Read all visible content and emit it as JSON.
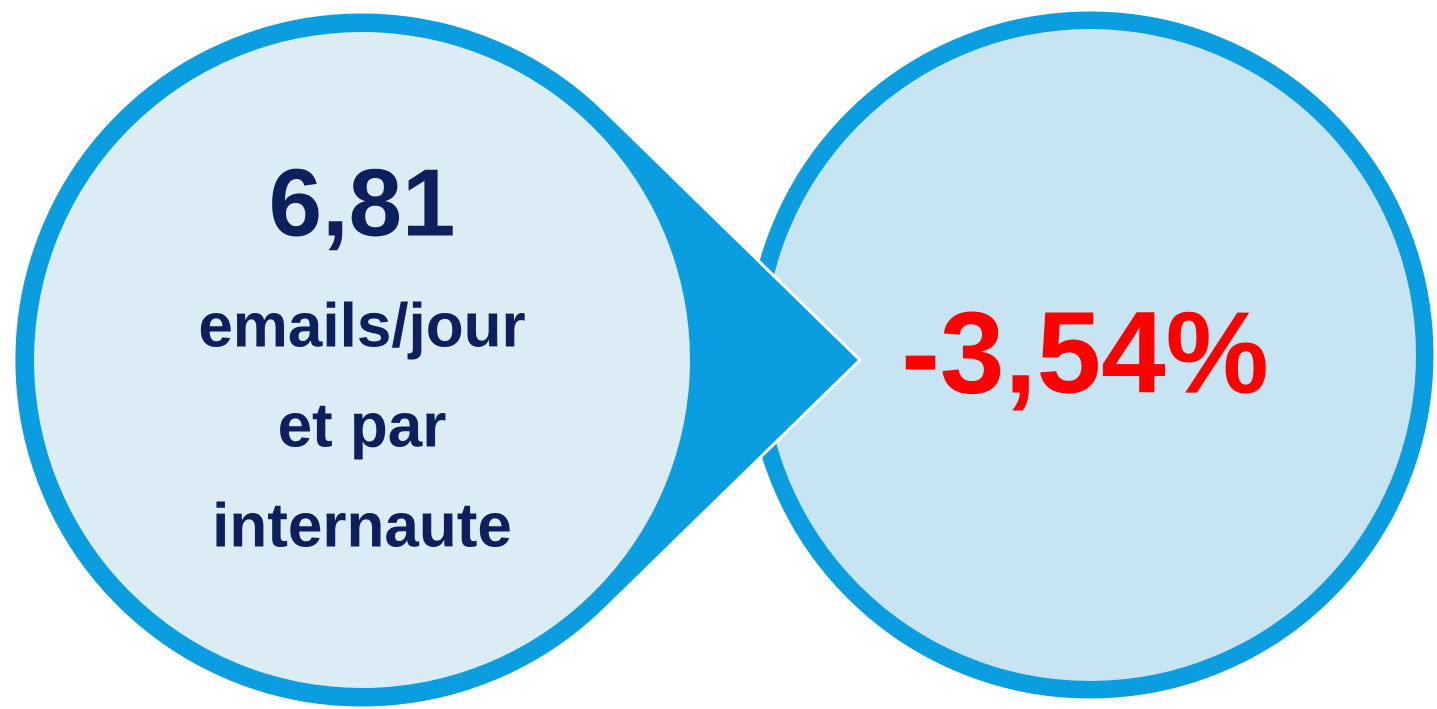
{
  "left": {
    "value": "6,81",
    "lines": [
      "emails/jour",
      "et par",
      "internaute"
    ]
  },
  "right": {
    "value": "-3,54%"
  }
}
